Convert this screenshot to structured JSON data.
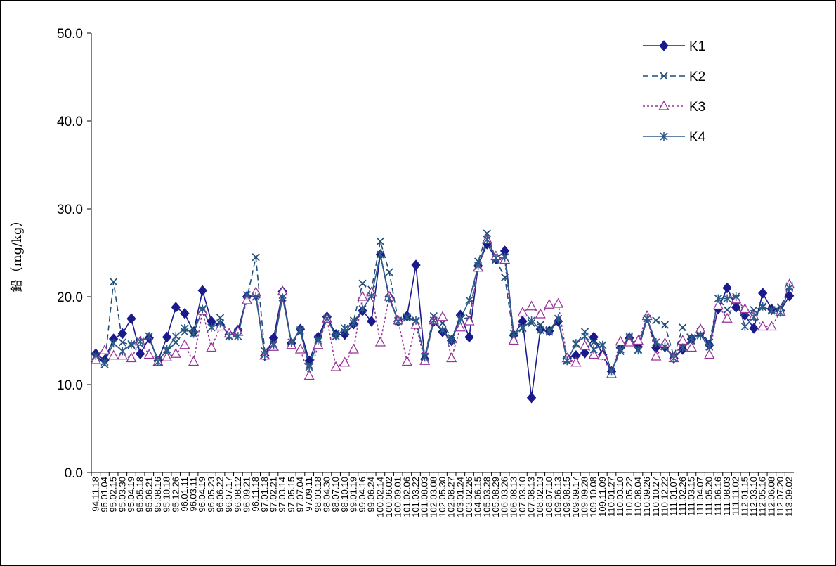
{
  "chart_data": {
    "type": "line",
    "y_label": "鉛（mg/kg）",
    "categories": [
      "94.11.18",
      "95.01.04",
      "95.02.15",
      "95.03.30",
      "95.04.19",
      "95.05.18",
      "95.06.21",
      "95.08.16",
      "95.10.18",
      "95.12.26",
      "96.01.11",
      "96.03.11",
      "96.04.19",
      "96.05.23",
      "96.06.22",
      "96.07.17",
      "96.08.12",
      "96.09.21",
      "96.11.18",
      "97.01.18",
      "97.02.21",
      "97.03.14",
      "97.05.15",
      "97.07.04",
      "97.09.11",
      "98.03.18",
      "98.04.30",
      "98.07.10",
      "98.10.10",
      "99.01.19",
      "99.04.16",
      "99.06.24",
      "100.02.14",
      "100.06.02",
      "100.09.01",
      "101.02.06",
      "101.03.22",
      "101.08.03",
      "102.03.08",
      "102.05.30",
      "102.08.27",
      "103.01.24",
      "103.02.26",
      "104.06.15",
      "105.03.28",
      "105.08.29",
      "106.03.26",
      "106.08.13",
      "107.03.10",
      "107.08.13",
      "108.02.13",
      "108.07.10",
      "109.06.13",
      "109.08.15",
      "109.09.17",
      "109.09.28",
      "109.10.08",
      "109.11.09",
      "110.01.27",
      "110.03.10",
      "110.05.22",
      "110.08.04",
      "110.09.26",
      "110.10.27",
      "110.12.22",
      "111.01.07",
      "111.02.26",
      "111.03.15",
      "111.04.07",
      "111.05.20",
      "111.06.16",
      "111.08.03",
      "111.11.02",
      "112.01.15",
      "112.03.10",
      "112.05.16",
      "112.06.08",
      "112.07.20",
      "113.09.02"
    ],
    "series": [
      {
        "name": "K1",
        "color": "#1a1a8c",
        "line_style": "solid",
        "marker": "diamond",
        "values": [
          13.5,
          12.8,
          15.2,
          15.8,
          17.5,
          13.5,
          15.3,
          12.7,
          15.4,
          18.8,
          18.1,
          16.0,
          20.7,
          17.2,
          16.8,
          15.7,
          16.2,
          20.0,
          20.2,
          13.3,
          15.3,
          20.6,
          14.7,
          16.3,
          12.7,
          15.4,
          17.7,
          15.7,
          15.7,
          16.9,
          18.4,
          17.2,
          24.8,
          20.0,
          17.2,
          17.8,
          23.6,
          12.9,
          17.2,
          16.0,
          15.0,
          17.9,
          15.4,
          23.5,
          26.0,
          24.3,
          25.2,
          15.6,
          17.2,
          8.5,
          16.3,
          16.1,
          17.2,
          13.0,
          13.3,
          13.6,
          15.4,
          13.4,
          11.5,
          14.2,
          15.3,
          14.3,
          17.6,
          14.2,
          14.3,
          13.0,
          14.0,
          15.2,
          15.9,
          14.5,
          18.6,
          21.0,
          18.8,
          17.9,
          16.4,
          20.4,
          18.6,
          18.4,
          20.1
        ]
      },
      {
        "name": "K2",
        "color": "#1f4e79",
        "line_style": "dashed",
        "marker": "x",
        "values": [
          13.2,
          12.3,
          21.7,
          14.8,
          14.5,
          14.6,
          15.5,
          12.8,
          13.8,
          14.8,
          16.0,
          16.3,
          18.5,
          16.5,
          17.6,
          15.5,
          16.0,
          19.8,
          24.5,
          13.8,
          14.6,
          20.2,
          14.5,
          16.0,
          12.2,
          15.2,
          17.4,
          15.8,
          16.0,
          17.3,
          21.5,
          20.8,
          26.3,
          22.8,
          17.3,
          17.6,
          17.2,
          13.2,
          17.8,
          17.0,
          15.3,
          17.5,
          17.6,
          24.0,
          27.2,
          24.2,
          22.2,
          15.4,
          16.5,
          17.0,
          16.8,
          16.2,
          17.5,
          12.8,
          14.6,
          16.0,
          14.8,
          14.5,
          11.5,
          13.8,
          15.3,
          14.0,
          17.5,
          17.3,
          16.8,
          13.2,
          16.5,
          15.0,
          16.0,
          14.8,
          19.8,
          18.5,
          19.8,
          18.2,
          18.5,
          18.8,
          18.5,
          18.8,
          21.2
        ]
      },
      {
        "name": "K3",
        "color": "#993399",
        "line_style": "dotted",
        "marker": "triangle",
        "values": [
          12.8,
          13.9,
          13.3,
          13.3,
          13.0,
          14.9,
          13.4,
          12.6,
          13.1,
          13.5,
          14.5,
          12.6,
          18.4,
          14.2,
          16.6,
          15.8,
          16.0,
          19.6,
          20.5,
          13.3,
          14.3,
          20.6,
          14.5,
          14.0,
          11.0,
          14.5,
          17.5,
          12.0,
          12.5,
          14.0,
          20.0,
          20.5,
          14.8,
          20.0,
          17.3,
          12.6,
          16.8,
          12.7,
          17.3,
          17.7,
          13.0,
          16.5,
          17.2,
          23.3,
          26.5,
          24.6,
          24.2,
          15.0,
          18.2,
          18.9,
          18.0,
          19.1,
          19.2,
          13.0,
          12.5,
          14.4,
          13.4,
          13.3,
          11.2,
          14.9,
          14.8,
          15.0,
          17.8,
          13.2,
          14.7,
          13.0,
          15.0,
          14.2,
          16.3,
          13.4,
          19.0,
          17.5,
          19.7,
          18.6,
          17.8,
          16.6,
          16.6,
          18.3,
          21.4
        ]
      },
      {
        "name": "K4",
        "color": "#2e5c8a",
        "line_style": "solid",
        "marker": "star",
        "values": [
          13.3,
          12.6,
          14.7,
          13.8,
          14.6,
          14.9,
          15.5,
          12.6,
          14.0,
          15.5,
          16.4,
          15.8,
          18.6,
          16.5,
          17.0,
          15.5,
          15.5,
          20.2,
          20.0,
          13.4,
          14.5,
          19.9,
          14.8,
          16.2,
          12.0,
          15.0,
          17.5,
          15.5,
          16.4,
          17.0,
          18.6,
          20.1,
          24.8,
          19.8,
          17.2,
          17.7,
          17.3,
          13.1,
          17.3,
          16.2,
          15.0,
          17.5,
          19.6,
          23.5,
          26.5,
          24.4,
          24.5,
          15.8,
          16.4,
          17.3,
          16.2,
          16.0,
          17.5,
          12.7,
          14.7,
          15.5,
          14.0,
          14.5,
          11.5,
          14.0,
          15.5,
          13.9,
          17.5,
          14.8,
          14.3,
          13.0,
          14.2,
          15.3,
          15.6,
          14.3,
          19.8,
          19.8,
          20.0,
          16.6,
          17.7,
          18.9,
          18.4,
          18.2,
          21.0
        ]
      }
    ],
    "ylim": [
      0,
      50
    ],
    "yticks": [
      {
        "value": 0,
        "label": "0.0"
      },
      {
        "value": 10,
        "label": "10.0"
      },
      {
        "value": 20,
        "label": "20.0"
      },
      {
        "value": 30,
        "label": "30.0"
      },
      {
        "value": 40,
        "label": "40.0"
      },
      {
        "value": 50,
        "label": "50.0"
      }
    ],
    "grid": false,
    "legend": "upper right"
  }
}
